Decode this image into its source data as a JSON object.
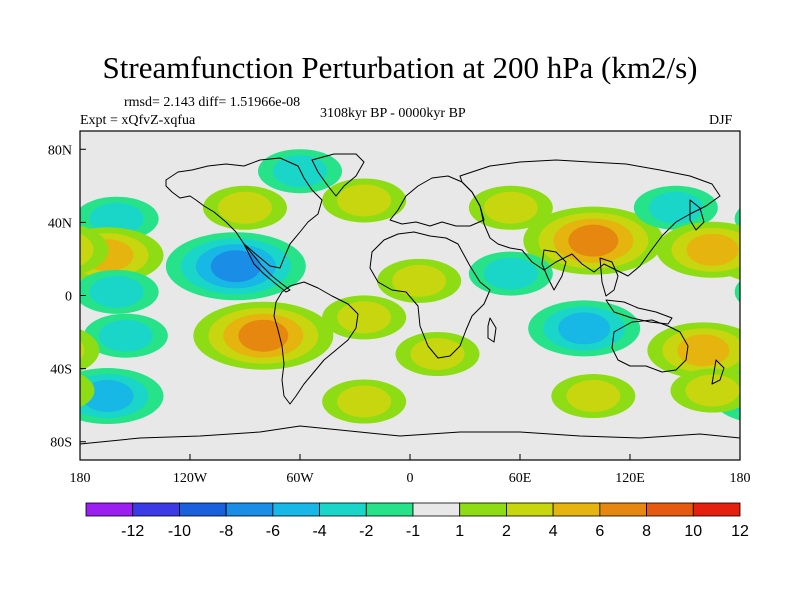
{
  "title": "Streamfunction Perturbation at 200 hPa (km2/s)",
  "stats": "rmsd= 2.143 diff= 1.51966e-08",
  "experiment": "Expt = xQfvZ-xqfua",
  "period": "3108kyr BP - 0000kyr BP",
  "season": "DJF",
  "axes": {
    "x_ticks": [
      "180",
      "120W",
      "60W",
      "0",
      "60E",
      "120E",
      "180"
    ],
    "y_ticks": [
      "80N",
      "40N",
      "0",
      "40S",
      "80S"
    ]
  },
  "colorbar": {
    "labels": [
      "-12",
      "-10",
      "-8",
      "-6",
      "-4",
      "-2",
      "-1",
      "1",
      "2",
      "4",
      "6",
      "8",
      "10",
      "12"
    ],
    "colors": [
      "#9a1ff0",
      "#3a3ae6",
      "#1a5fdc",
      "#1a8ee6",
      "#17b7e6",
      "#1ad6c8",
      "#26e38a",
      "#e8e8e8",
      "#8edc14",
      "#c8d60f",
      "#e6b40f",
      "#e6880f",
      "#e65a0f",
      "#e6200f"
    ]
  },
  "field": {
    "background": "#e8e8e8",
    "features": [
      {
        "name": "ne-pacific-low-north",
        "sign": "negative",
        "level": 1,
        "lon": 200,
        "lat": 42
      },
      {
        "name": "ne-pacific-high",
        "sign": "positive",
        "level": 2,
        "lon": 195,
        "lat": 22
      },
      {
        "name": "ne-pacific-low-south",
        "sign": "negative",
        "level": 1,
        "lon": 200,
        "lat": 2
      },
      {
        "name": "sh-pacific-low",
        "sign": "negative",
        "level": 1,
        "lon": 205,
        "lat": -22
      },
      {
        "name": "south-pacific-low",
        "sign": "negative",
        "level": 2,
        "lon": 195,
        "lat": -55
      },
      {
        "name": "canada-high",
        "sign": "positive",
        "level": 1,
        "lon": 270,
        "lat": 48
      },
      {
        "name": "greenland-low",
        "sign": "negative",
        "level": 1,
        "lon": 300,
        "lat": 68
      },
      {
        "name": "caribbean-low",
        "sign": "negative",
        "level": 3,
        "lon": 265,
        "lat": 16
      },
      {
        "name": "south-america-high",
        "sign": "positive",
        "level": 3,
        "lon": 280,
        "lat": -22
      },
      {
        "name": "south-atlantic-high",
        "sign": "positive",
        "level": 1,
        "lon": 335,
        "lat": -12
      },
      {
        "name": "south-ocean-high-west",
        "sign": "positive",
        "level": 1,
        "lon": 335,
        "lat": -58
      },
      {
        "name": "north-atlantic-high",
        "sign": "positive",
        "level": 1,
        "lon": 335,
        "lat": 52
      },
      {
        "name": "africa-high",
        "sign": "positive",
        "level": 1,
        "lon": 5,
        "lat": 8
      },
      {
        "name": "south-africa-high",
        "sign": "positive",
        "level": 1,
        "lon": 15,
        "lat": -32
      },
      {
        "name": "europe-high",
        "sign": "positive",
        "level": 1,
        "lon": 55,
        "lat": 48
      },
      {
        "name": "asia-high",
        "sign": "positive",
        "level": 3,
        "lon": 100,
        "lat": 30
      },
      {
        "name": "arabia-low",
        "sign": "negative",
        "level": 1,
        "lon": 55,
        "lat": 12
      },
      {
        "name": "indian-ocean-low",
        "sign": "negative",
        "level": 2,
        "lon": 95,
        "lat": -18
      },
      {
        "name": "east-asia-low",
        "sign": "negative",
        "level": 1,
        "lon": 145,
        "lat": 48
      },
      {
        "name": "west-pacific-high",
        "sign": "positive",
        "level": 2,
        "lon": 165,
        "lat": 25
      },
      {
        "name": "australia-high",
        "sign": "positive",
        "level": 2,
        "lon": 160,
        "lat": -30
      },
      {
        "name": "south-ocean-high-east",
        "sign": "positive",
        "level": 1,
        "lon": 100,
        "lat": -55
      },
      {
        "name": "tasman-high",
        "sign": "positive",
        "level": 1,
        "lon": 165,
        "lat": -52
      }
    ]
  }
}
